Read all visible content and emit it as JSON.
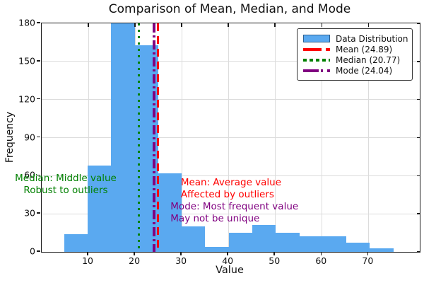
{
  "title": "Comparison of Mean, Median, and Mode",
  "chart_data": {
    "type": "bar",
    "subtype": "histogram",
    "title": "Comparison of Mean, Median, and Mode",
    "xlabel": "Value",
    "ylabel": "Frequency",
    "xlim": [
      0,
      81
    ],
    "ylim": [
      0,
      180
    ],
    "x_ticks": [
      10,
      20,
      30,
      40,
      50,
      60,
      70
    ],
    "y_ticks": [
      0,
      30,
      60,
      90,
      120,
      150,
      180
    ],
    "grid": true,
    "histogram": {
      "label": "Data Distribution",
      "color": "#5aa9f0",
      "bin_start": 4.8,
      "bin_width": 5.04,
      "counts": [
        14,
        68,
        180,
        163,
        62,
        20,
        4,
        15,
        21,
        15,
        12,
        12,
        7,
        3
      ]
    },
    "stat_lines": [
      {
        "name": "mean",
        "label": "Mean (24.89)",
        "value": 24.89,
        "color": "#ff0000",
        "style": "dashed",
        "width": 3
      },
      {
        "name": "median",
        "label": "Median (20.77)",
        "value": 20.77,
        "color": "#008000",
        "style": "dotted",
        "width": 3
      },
      {
        "name": "mode",
        "label": "Mode (24.04)",
        "value": 24.04,
        "color": "#800080",
        "style": "dashdot",
        "width": 4
      }
    ],
    "legend": {
      "position": "upper right",
      "items": [
        {
          "label": "Data Distribution",
          "color": "#5aa9f0",
          "type": "patch",
          "style": "solid"
        },
        {
          "label": "Mean (24.89)",
          "color": "#ff0000",
          "type": "line",
          "style": "dashed"
        },
        {
          "label": "Median (20.77)",
          "color": "#008000",
          "type": "line",
          "style": "dotted"
        },
        {
          "label": "Mode (24.04)",
          "color": "#800080",
          "type": "line",
          "style": "dashdot"
        }
      ]
    },
    "annotations": [
      {
        "name": "median-note",
        "color": "#008000",
        "x": 5.15,
        "y": 57.5,
        "align": "center",
        "lines": [
          "Median: Middle value",
          "Robust to outliers"
        ]
      },
      {
        "name": "mean-note",
        "color": "#ff0000",
        "x": 29.8,
        "y": 54,
        "align": "left",
        "lines": [
          "Mean: Average value",
          "Affected by outliers"
        ]
      },
      {
        "name": "mode-note",
        "color": "#800080",
        "x": 27.6,
        "y": 35,
        "align": "left",
        "lines": [
          "Mode: Most frequent value",
          "May not be unique"
        ]
      }
    ]
  }
}
